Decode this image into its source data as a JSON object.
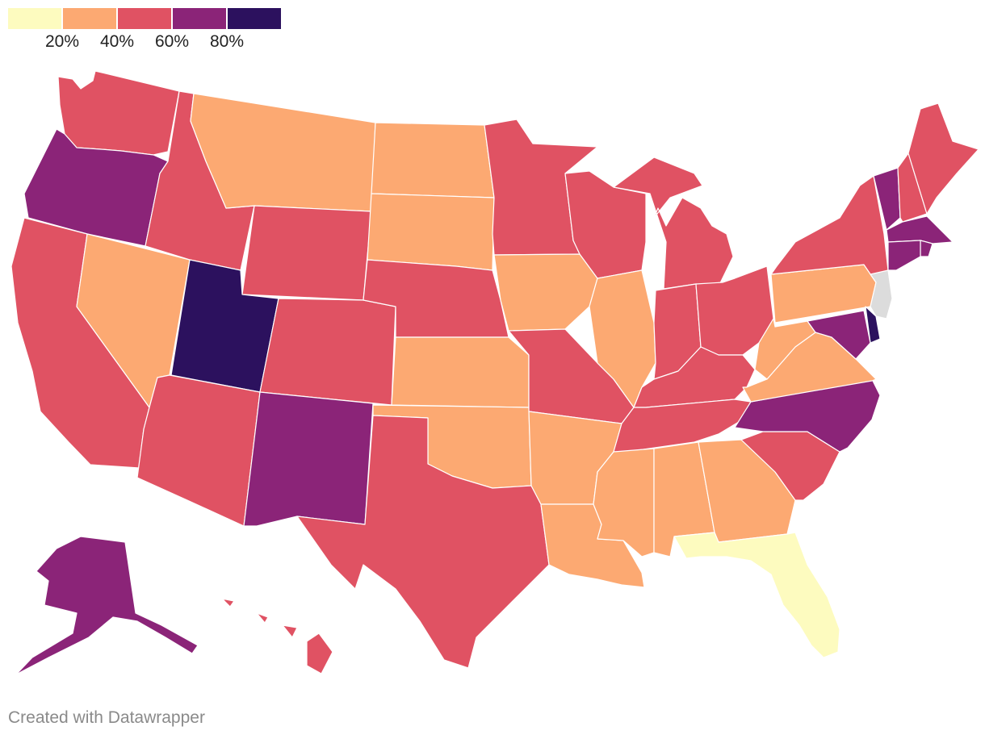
{
  "legend": {
    "colors": [
      "#fdfbbf",
      "#fca972",
      "#e05263",
      "#8b2478",
      "#2c115e"
    ],
    "ticks": [
      "20%",
      "40%",
      "60%",
      "80%"
    ]
  },
  "colors": {
    "bin1": "#fdfbbf",
    "bin2": "#fca972",
    "bin3": "#e05263",
    "bin4": "#8b2478",
    "bin5": "#2c115e",
    "no_data": "#dcdcdc"
  },
  "states": {
    "WA": 3,
    "OR": 4,
    "CA": 3,
    "NV": 2,
    "ID": 3,
    "MT": 2,
    "WY": 3,
    "UT": 5,
    "AZ": 3,
    "NM": 4,
    "CO": 3,
    "ND": 2,
    "SD": 2,
    "NE": 3,
    "KS": 2,
    "OK": 2,
    "TX": 3,
    "MN": 3,
    "IA": 2,
    "MO": 3,
    "AR": 2,
    "LA": 2,
    "WI": 3,
    "IL": 2,
    "MI": 3,
    "IN": 3,
    "OH": 3,
    "KY": 3,
    "TN": 3,
    "MS": 2,
    "AL": 2,
    "GA": 2,
    "FL": 1,
    "SC": 3,
    "NC": 4,
    "VA": 2,
    "WV": 2,
    "PA": 2,
    "NY": 3,
    "VT": 4,
    "NH": 3,
    "ME": 3,
    "MA": 4,
    "RI": 4,
    "CT": 4,
    "NJ": 0,
    "DE": 5,
    "MD": 4,
    "AK": 4,
    "HI": 3
  },
  "credit": "Created with Datawrapper"
}
